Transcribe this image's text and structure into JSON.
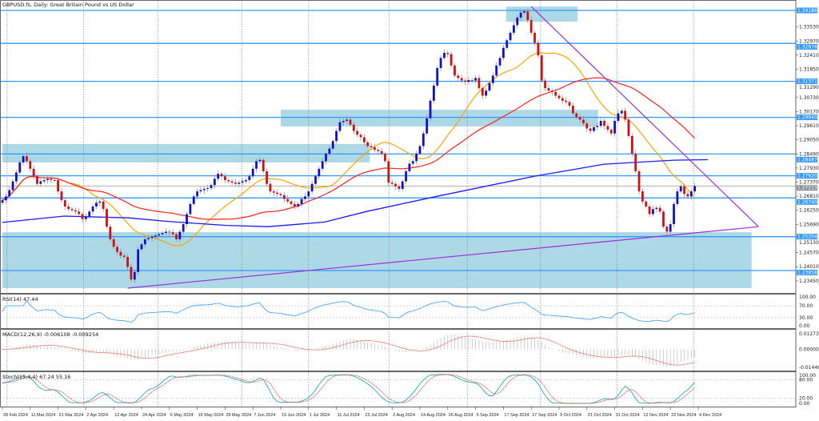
{
  "chart_data": {
    "type": "candlestick",
    "title": "GBPUSD.fs, Daily:  Great Britain Pound vs US Dollar",
    "x_tick_labels": [
      "28 Feb 2024",
      "11 Mar 2024",
      "21 Mar 2024",
      "2 Apr 2024",
      "12 Apr 2024",
      "24 Apr 2024",
      "6 May 2024",
      "16 May 2024",
      "28 May 2024",
      "7 Jun 2024",
      "19 Jun 2024",
      "1 Jul 2024",
      "11 Jul 2024",
      "23 Jul 2024",
      "2 Aug 2024",
      "14 Aug 2024",
      "26 Aug 2024",
      "5 Sep 2024",
      "17 Sep 2024",
      "27 Sep 2024",
      "9 Oct 2024",
      "21 Oct 2024",
      "31 Oct 2024",
      "12 Nov 2024",
      "22 Nov 2024",
      "4 Dec 2024"
    ],
    "bars_per_tick": 8,
    "ylim": [
      1.2316,
      1.346
    ],
    "y_tick_labels": [
      "1.33530",
      "1.32970",
      "1.32410",
      "1.31850",
      "1.31290",
      "1.30730",
      "1.30170",
      "1.29610",
      "1.29050",
      "1.28490",
      "1.27930",
      "1.27370",
      "1.26810",
      "1.26250",
      "1.25690",
      "1.25130",
      "1.24570",
      "1.24010",
      "1.23450"
    ],
    "closes": [
      1.2665,
      1.268,
      1.2705,
      1.274,
      1.2775,
      1.2815,
      1.284,
      1.282,
      1.279,
      1.276,
      1.273,
      1.274,
      1.2745,
      1.275,
      1.2745,
      1.2745,
      1.27,
      1.2665,
      1.264,
      1.263,
      1.2625,
      1.262,
      1.261,
      1.259,
      1.26,
      1.262,
      1.264,
      1.2655,
      1.266,
      1.263,
      1.256,
      1.251,
      1.248,
      1.246,
      1.2445,
      1.244,
      1.24,
      1.235,
      1.238,
      1.247,
      1.249,
      1.251,
      1.2515,
      1.252,
      1.2525,
      1.253,
      1.2535,
      1.254,
      1.2538,
      1.253,
      1.251,
      1.254,
      1.257,
      1.261,
      1.265,
      1.268,
      1.27,
      1.2705,
      1.271,
      1.2713,
      1.2725,
      1.275,
      1.277,
      1.276,
      1.2745,
      1.274,
      1.2735,
      1.273,
      1.2735,
      1.274,
      1.2745,
      1.276,
      1.279,
      1.282,
      1.2825,
      1.278,
      1.273,
      1.27,
      1.2695,
      1.269,
      1.2685,
      1.267,
      1.266,
      1.265,
      1.264,
      1.265,
      1.267,
      1.268,
      1.27,
      1.273,
      1.276,
      1.279,
      1.282,
      1.285,
      1.287,
      1.29,
      1.294,
      1.2975,
      1.298,
      1.2985,
      1.2965,
      1.294,
      1.2925,
      1.2915,
      1.2895,
      1.288,
      1.2875,
      1.2865,
      1.286,
      1.285,
      1.282,
      1.2735,
      1.273,
      1.272,
      1.271,
      1.274,
      1.278,
      1.281,
      1.282,
      1.285,
      1.288,
      1.293,
      1.299,
      1.306,
      1.312,
      1.319,
      1.323,
      1.325,
      1.3245,
      1.32,
      1.316,
      1.315,
      1.314,
      1.3135,
      1.3142,
      1.314,
      1.315,
      1.311,
      1.308,
      1.31,
      1.313,
      1.316,
      1.32,
      1.323,
      1.327,
      1.33,
      1.333,
      1.336,
      1.339,
      1.341,
      1.3415,
      1.338,
      1.333,
      1.329,
      1.324,
      1.314,
      1.311,
      1.31,
      1.3095,
      1.308,
      1.307,
      1.306,
      1.3055,
      1.304,
      1.301,
      1.2995,
      1.2985,
      1.297,
      1.295,
      1.294,
      1.2955,
      1.296,
      1.298,
      1.296,
      1.2945,
      1.293,
      1.298,
      1.301,
      1.302,
      1.2985,
      1.292,
      1.285,
      1.278,
      1.27,
      1.266,
      1.264,
      1.261,
      1.263,
      1.2635,
      1.262,
      1.256,
      1.254,
      1.257,
      1.265,
      1.27,
      1.272,
      1.269,
      1.268,
      1.27,
      1.2721
    ],
    "current_price": "1.27213",
    "horizontal_levels": [
      "1.34186",
      "1.32878",
      "1.31371",
      "1.29940",
      "1.28487",
      "1.27620",
      "1.26740",
      "1.25204",
      "1.23858"
    ],
    "zones": [
      {
        "from": "28 Feb 2024",
        "to": "25 Jul 2024",
        "top": 1.2888,
        "bottom": 1.2815
      },
      {
        "from": "19 Jun 2024",
        "to": "25 Oct 2024",
        "top": 1.3024,
        "bottom": 1.2958
      },
      {
        "from": "18 Sep 2024",
        "to": "17 Oct 2024",
        "top": 1.3434,
        "bottom": 1.3374
      },
      {
        "from": "28 Feb 2024",
        "to": "27 Dec 2024",
        "top": 1.2538,
        "bottom": 1.2316
      }
    ],
    "trendlines": [
      {
        "from": [
          "18 Apr 2024",
          1.2316
        ],
        "to": [
          "30 Dec 2024",
          1.256
        ]
      },
      {
        "from": [
          "27 Sep 2024",
          1.3434
        ],
        "to": [
          "30 Dec 2024",
          1.256
        ]
      }
    ],
    "moving_averages": {
      "fast_period": 20,
      "fast_color": "#ffa500",
      "mid_period": 50,
      "mid_color": "#ff2020",
      "slow_color": "#1a1aff",
      "slow_values": [
        [
          0,
          1.2577
        ],
        [
          22,
          1.2602
        ],
        [
          45,
          1.2595
        ],
        [
          60,
          1.258
        ],
        [
          80,
          1.2565
        ],
        [
          95,
          1.256
        ],
        [
          115,
          1.2578
        ],
        [
          130,
          1.262
        ],
        [
          155,
          1.268
        ],
        [
          190,
          1.276
        ],
        [
          215,
          1.2808
        ],
        [
          240,
          1.2824
        ],
        [
          252,
          1.2826
        ]
      ]
    },
    "colors": {
      "bull": "#1010c8",
      "bear": "#d01010",
      "level": "#3399ff",
      "zone": "#add8e6",
      "trendline": "#a030d0"
    },
    "indicators": {
      "rsi": {
        "label": "RSI(14) 47.44",
        "levels": [
          "100.00",
          "70.00",
          "30.00",
          "0.00"
        ],
        "color": "#4da6ff"
      },
      "macd": {
        "label": "MACD(12,26,9) -0.006108 -0.009254",
        "levels": [
          "0.012734",
          "0.000000",
          "-0.014461"
        ],
        "range": [
          -0.014461,
          0.012734
        ]
      },
      "stoch": {
        "label": "Stoch(15,4,4) 67.24 55.16",
        "levels": [
          "100.00",
          "80.00",
          "20.00",
          "0.00"
        ],
        "color": "#20b2aa"
      }
    }
  }
}
